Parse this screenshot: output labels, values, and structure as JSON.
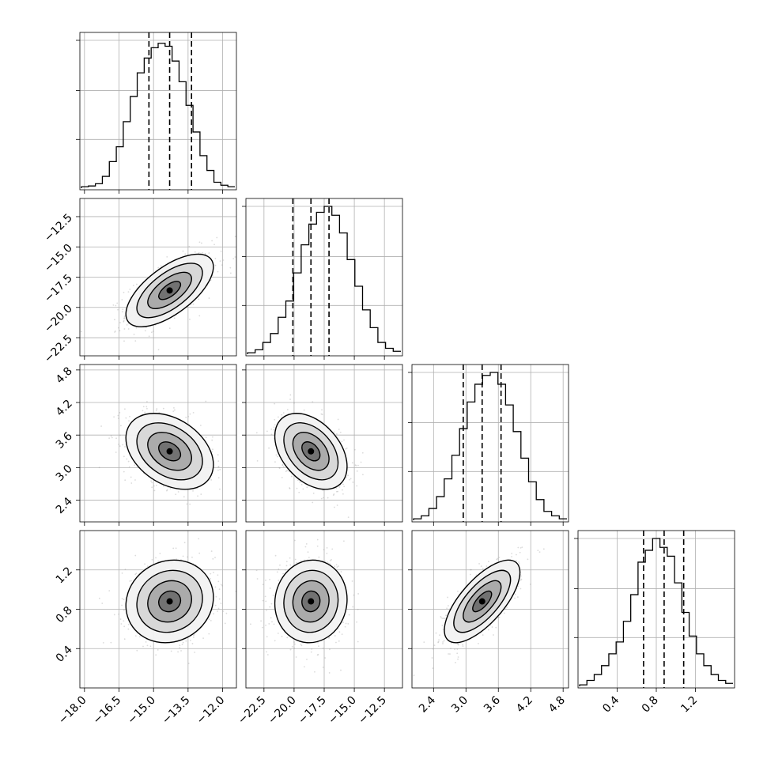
{
  "chart_data": {
    "type": "corner",
    "title": "",
    "grid": true,
    "parameters": [
      {
        "ticks": [
          -18.0,
          -16.5,
          -15.0,
          -13.5,
          -12.0
        ],
        "range": [
          -18.2,
          -11.4
        ],
        "median": -14.3,
        "q16": -15.2,
        "q84": -13.35,
        "sigma": 0.95,
        "hist": [
          0.01,
          0.015,
          0.03,
          0.08,
          0.18,
          0.28,
          0.45,
          0.62,
          0.78,
          0.88,
          0.95,
          0.98,
          0.96,
          0.86,
          0.72,
          0.56,
          0.38,
          0.22,
          0.12,
          0.04,
          0.02,
          0.01
        ]
      },
      {
        "ticks": [
          -22.5,
          -20.0,
          -17.5,
          -15.0,
          -12.5
        ],
        "range": [
          -24.0,
          -11.0
        ],
        "median": -18.6,
        "q16": -20.1,
        "q84": -17.1,
        "sigma": 1.5,
        "hist": [
          0.01,
          0.03,
          0.08,
          0.14,
          0.25,
          0.36,
          0.55,
          0.74,
          0.88,
          0.96,
          1.0,
          0.94,
          0.82,
          0.64,
          0.46,
          0.3,
          0.18,
          0.08,
          0.04,
          0.02
        ]
      },
      {
        "ticks": [
          2.4,
          3.0,
          3.6,
          4.2,
          4.8
        ],
        "range": [
          2.0,
          4.9
        ],
        "median": 3.3,
        "q16": 2.95,
        "q84": 3.65,
        "sigma": 0.35,
        "hist": [
          0.01,
          0.03,
          0.08,
          0.16,
          0.28,
          0.44,
          0.62,
          0.8,
          0.92,
          0.98,
          1.0,
          0.92,
          0.78,
          0.6,
          0.42,
          0.26,
          0.14,
          0.06,
          0.03,
          0.01
        ]
      },
      {
        "ticks": [
          0.4,
          0.8,
          1.2
        ],
        "range": [
          0.0,
          1.6
        ],
        "median": 0.88,
        "q16": 0.67,
        "q84": 1.08,
        "sigma": 0.21,
        "hist": [
          0.01,
          0.04,
          0.08,
          0.14,
          0.22,
          0.3,
          0.44,
          0.62,
          0.84,
          0.92,
          1.0,
          0.94,
          0.88,
          0.7,
          0.5,
          0.34,
          0.22,
          0.14,
          0.08,
          0.04,
          0.02
        ]
      }
    ],
    "correlations": [
      {
        "row": 1,
        "col": 0,
        "rho": 0.65
      },
      {
        "row": 2,
        "col": 0,
        "rho": -0.35
      },
      {
        "row": 2,
        "col": 1,
        "rho": -0.4
      },
      {
        "row": 3,
        "col": 0,
        "rho": 0.1
      },
      {
        "row": 3,
        "col": 1,
        "rho": 0.05
      },
      {
        "row": 3,
        "col": 2,
        "rho": 0.7
      }
    ],
    "contour_levels": [
      0.5,
      1.0,
      1.5,
      2.0
    ],
    "colors": {
      "line": "#000000",
      "points": "#999999",
      "grid": "#b0b0b0"
    }
  }
}
